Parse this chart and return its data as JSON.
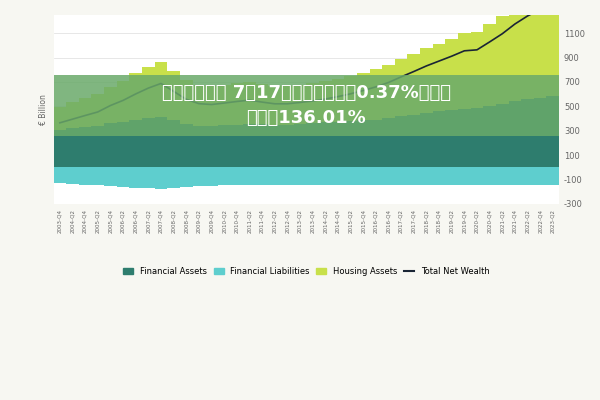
{
  "title_line1": "股票配资平台 7月17日健友转债上涨0.37%，转股",
  "title_line2": "溢价率136.01%",
  "title_color": "#ffffff",
  "title_bg_color": "#6aaa6a",
  "title_bg_alpha": 0.85,
  "ylabel": "€ Billion",
  "ylim": [
    -300,
    1250
  ],
  "yticks": [
    -300,
    -100,
    100,
    300,
    500,
    700,
    900,
    1100
  ],
  "bg_color": "#f7f7f2",
  "plot_bg_color": "#ffffff",
  "grid_color": "#dddddd",
  "legend_labels": [
    "Financial Assets",
    "Financial Liabilities",
    "Housing Assets",
    "Total Net Wealth"
  ],
  "col_fa": "#2e7d6e",
  "col_fl": "#5ecece",
  "col_ha": "#c8e04a",
  "col_tnw": "#1a2535",
  "quarters": [
    "2003-Q4",
    "2004-Q2",
    "2004-Q4",
    "2005-Q2",
    "2005-Q4",
    "2006-Q2",
    "2006-Q4",
    "2007-Q2",
    "2007-Q4",
    "2008-Q2",
    "2008-Q4",
    "2009-Q2",
    "2009-Q4",
    "2010-Q2",
    "2010-Q4",
    "2011-Q2",
    "2011-Q4",
    "2012-Q2",
    "2012-Q4",
    "2013-Q2",
    "2013-Q4",
    "2014-Q2",
    "2014-Q4",
    "2015-Q2",
    "2015-Q4",
    "2016-Q2",
    "2016-Q4",
    "2017-Q2",
    "2017-Q4",
    "2018-Q2",
    "2018-Q4",
    "2019-Q2",
    "2019-Q4",
    "2020-Q2",
    "2020-Q4",
    "2021-Q2",
    "2021-Q4",
    "2022-Q2",
    "2022-Q4",
    "2023-Q2"
  ],
  "financial_assets": [
    310,
    322,
    333,
    342,
    362,
    372,
    392,
    405,
    415,
    385,
    352,
    340,
    338,
    344,
    350,
    358,
    352,
    347,
    350,
    356,
    362,
    368,
    374,
    380,
    386,
    392,
    402,
    418,
    432,
    448,
    458,
    468,
    482,
    488,
    505,
    522,
    542,
    558,
    572,
    588
  ],
  "financial_liabilities": [
    -130,
    -137,
    -143,
    -148,
    -153,
    -161,
    -168,
    -173,
    -175,
    -170,
    -162,
    -156,
    -151,
    -149,
    -148,
    -149,
    -149,
    -148,
    -147,
    -146,
    -146,
    -146,
    -146,
    -145,
    -144,
    -144,
    -144,
    -144,
    -144,
    -144,
    -144,
    -144,
    -144,
    -144,
    -144,
    -144,
    -144,
    -144,
    -144,
    -144
  ],
  "housing_assets": [
    185,
    210,
    235,
    260,
    298,
    338,
    378,
    418,
    448,
    408,
    368,
    338,
    328,
    332,
    338,
    342,
    332,
    322,
    318,
    322,
    328,
    338,
    352,
    368,
    388,
    412,
    438,
    468,
    498,
    528,
    558,
    588,
    618,
    620,
    668,
    718,
    778,
    828,
    868,
    928
  ],
  "total_net_wealth": [
    365,
    395,
    425,
    454,
    507,
    549,
    602,
    650,
    688,
    623,
    558,
    522,
    515,
    527,
    540,
    551,
    535,
    521,
    521,
    532,
    544,
    560,
    580,
    603,
    630,
    660,
    696,
    742,
    786,
    832,
    872,
    912,
    956,
    964,
    1029,
    1096,
    1176,
    1242,
    1296,
    1372
  ]
}
